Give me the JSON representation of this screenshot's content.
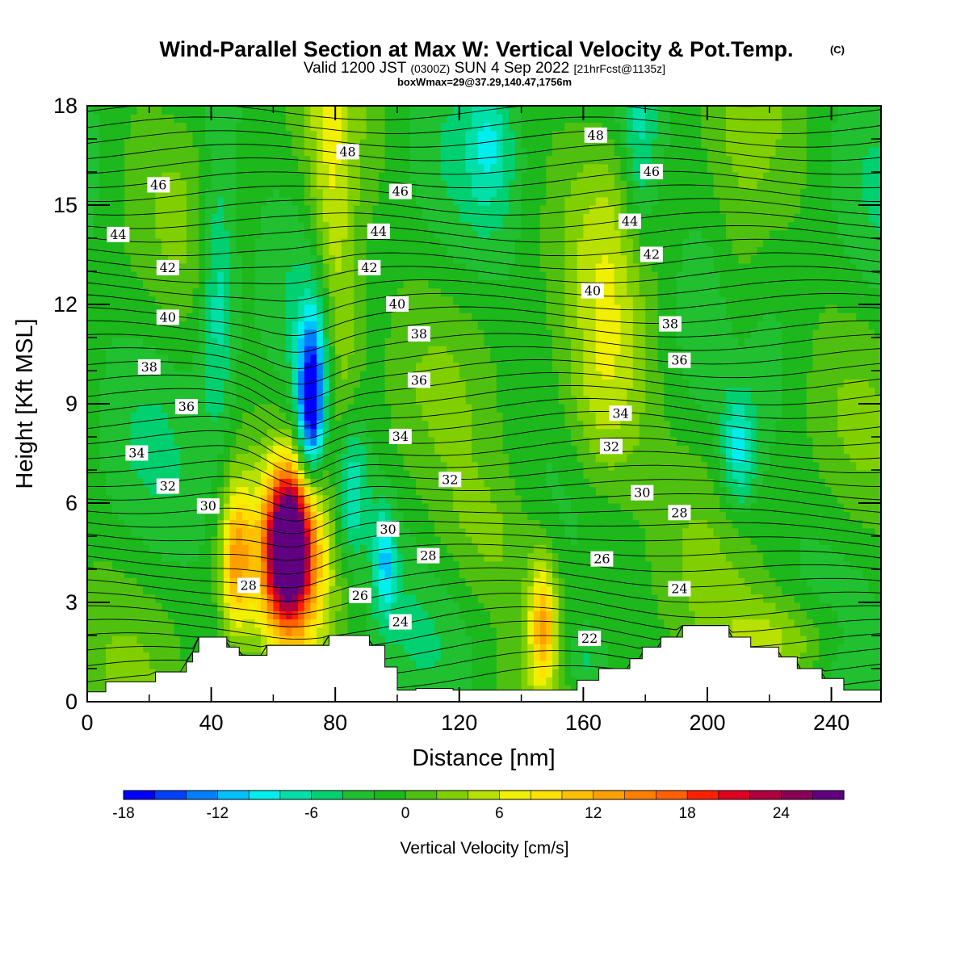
{
  "chart_data": {
    "type": "heatmap",
    "title": "Wind-Parallel Section at Max W: Vertical Velocity & Pot.Temp.",
    "title_mark": "(C)",
    "subtitle": {
      "valid": "Valid 1200 JST",
      "utc": "(0300Z)",
      "date": "SUN 4 Sep 2022",
      "forecast": "[21hrFcst@1135z]"
    },
    "box_info": "boxWmax=29@37.29,140.47,1756m",
    "xlabel": "Distance [nm]",
    "ylabel": "Height [Kft MSL]",
    "xlim": [
      0,
      256
    ],
    "ylim": [
      0,
      18
    ],
    "x_ticks": [
      0,
      40,
      80,
      120,
      160,
      200,
      240
    ],
    "y_ticks": [
      0,
      3,
      6,
      9,
      12,
      15,
      18
    ],
    "colorbar": {
      "title": "Vertical Velocity [cm/s]",
      "min": -18,
      "max": 28,
      "step": 2,
      "tick_values": [
        -18,
        -12,
        -6,
        0,
        6,
        12,
        18,
        24
      ],
      "tick_labels": [
        "-18",
        "-12",
        "-6",
        "0",
        "6",
        "12",
        "18",
        "24"
      ],
      "colors": [
        "#0000ff",
        "#0040ff",
        "#0080ff",
        "#00c0ff",
        "#00eeee",
        "#00e0a8",
        "#00d070",
        "#20c030",
        "#1cb81c",
        "#50c010",
        "#80d000",
        "#b8e000",
        "#f0f000",
        "#ffe000",
        "#ffc000",
        "#ffa000",
        "#ff8000",
        "#ff6000",
        "#ff2000",
        "#e00020",
        "#b00040",
        "#8a0058",
        "#600080"
      ]
    },
    "velocity_features": [
      {
        "name": "updraft-core",
        "x": 65,
        "z": 4.8,
        "value": 29,
        "sx": 5,
        "sz": 1.5
      },
      {
        "name": "updraft-flank",
        "x": 65,
        "z": 3.6,
        "value": 10,
        "sx": 9,
        "sz": 2.2
      },
      {
        "name": "updraft-west",
        "x": 48,
        "z": 4.3,
        "value": 12,
        "sx": 3.5,
        "sz": 1.6
      },
      {
        "name": "updraft-east",
        "x": 147,
        "z": 2.4,
        "value": 12,
        "sx": 3,
        "sz": 1.3
      },
      {
        "name": "upper-plume-1",
        "x": 78,
        "z": 14,
        "value": 6,
        "sx": 5,
        "sz": 4.5
      },
      {
        "name": "upper-plume-2",
        "x": 83,
        "z": 11,
        "value": 4,
        "sx": 5,
        "sz": 3
      },
      {
        "name": "plume-east-1",
        "x": 168,
        "z": 11,
        "value": 4,
        "sx": 8,
        "sz": 4
      },
      {
        "name": "plume-east-2",
        "x": 163,
        "z": 8.6,
        "value": 4,
        "sx": 11,
        "sz": 2
      },
      {
        "name": "lowlevel-east",
        "x": 225,
        "z": 1.8,
        "value": 6,
        "sx": 14,
        "sz": 1
      },
      {
        "name": "lowlevel-mid",
        "x": 128,
        "z": 5,
        "value": 3,
        "sx": 15,
        "sz": 1.5
      },
      {
        "name": "upper-east-3",
        "x": 210,
        "z": 12,
        "value": 3,
        "sx": 6,
        "sz": 3
      },
      {
        "name": "downdraft-core",
        "x": 72,
        "z": 8.8,
        "value": -15,
        "sx": 3,
        "sz": 1.6
      },
      {
        "name": "downdraft-slant",
        "x": 85,
        "z": 6.4,
        "value": -9,
        "sx": 4,
        "sz": 1.5
      },
      {
        "name": "downdraft-low",
        "x": 96,
        "z": 4.3,
        "value": -8,
        "sx": 2.5,
        "sz": 1.2
      },
      {
        "name": "downdraft-west-upper",
        "x": 42,
        "z": 12.5,
        "value": -7,
        "sx": 4,
        "sz": 3
      },
      {
        "name": "downdraft-mid",
        "x": 74,
        "z": 10.3,
        "value": -7,
        "sx": 4,
        "sz": 2
      },
      {
        "name": "downdraft-east",
        "x": 210,
        "z": 7.5,
        "value": -8,
        "sx": 4,
        "sz": 1.3
      },
      {
        "name": "downdraft-top",
        "x": 130,
        "z": 17,
        "value": -5,
        "sx": 5,
        "sz": 1.5
      },
      {
        "name": "downdraft-top-east",
        "x": 178,
        "z": 16.5,
        "value": -5,
        "sx": 4,
        "sz": 2
      },
      {
        "name": "downdraft-low-east",
        "x": 160,
        "z": 1.2,
        "value": -5,
        "sx": 5,
        "sz": 0.8
      }
    ],
    "theta_contours": {
      "levels": [
        22,
        24,
        26,
        28,
        30,
        32,
        34,
        36,
        38,
        40,
        42,
        44,
        46,
        48
      ],
      "labels": [
        {
          "text": "48",
          "x": 84,
          "z": 16.6
        },
        {
          "text": "48",
          "x": 164,
          "z": 17.1
        },
        {
          "text": "46",
          "x": 23,
          "z": 15.6
        },
        {
          "text": "46",
          "x": 101,
          "z": 15.4
        },
        {
          "text": "46",
          "x": 182,
          "z": 16.0
        },
        {
          "text": "44",
          "x": 10,
          "z": 14.1
        },
        {
          "text": "44",
          "x": 94,
          "z": 14.2
        },
        {
          "text": "44",
          "x": 175,
          "z": 14.5
        },
        {
          "text": "42",
          "x": 26,
          "z": 13.1
        },
        {
          "text": "42",
          "x": 91,
          "z": 13.1
        },
        {
          "text": "42",
          "x": 182,
          "z": 13.5
        },
        {
          "text": "40",
          "x": 26,
          "z": 11.6
        },
        {
          "text": "40",
          "x": 100,
          "z": 12.0
        },
        {
          "text": "40",
          "x": 163,
          "z": 12.4
        },
        {
          "text": "38",
          "x": 20,
          "z": 10.1
        },
        {
          "text": "38",
          "x": 107,
          "z": 11.1
        },
        {
          "text": "38",
          "x": 188,
          "z": 11.4
        },
        {
          "text": "36",
          "x": 32,
          "z": 8.9
        },
        {
          "text": "36",
          "x": 107,
          "z": 9.7
        },
        {
          "text": "36",
          "x": 191,
          "z": 10.3
        },
        {
          "text": "34",
          "x": 16,
          "z": 7.5
        },
        {
          "text": "34",
          "x": 101,
          "z": 8.0
        },
        {
          "text": "34",
          "x": 172,
          "z": 8.7
        },
        {
          "text": "32",
          "x": 26,
          "z": 6.5
        },
        {
          "text": "32",
          "x": 117,
          "z": 6.7
        },
        {
          "text": "32",
          "x": 169,
          "z": 7.7
        },
        {
          "text": "30",
          "x": 39,
          "z": 5.9
        },
        {
          "text": "30",
          "x": 97,
          "z": 5.2
        },
        {
          "text": "30",
          "x": 179,
          "z": 6.3
        },
        {
          "text": "28",
          "x": 52,
          "z": 3.5
        },
        {
          "text": "28",
          "x": 110,
          "z": 4.4
        },
        {
          "text": "28",
          "x": 191,
          "z": 5.7
        },
        {
          "text": "26",
          "x": 88,
          "z": 3.2
        },
        {
          "text": "26",
          "x": 166,
          "z": 4.3
        },
        {
          "text": "24",
          "x": 101,
          "z": 2.4
        },
        {
          "text": "24",
          "x": 191,
          "z": 3.4
        },
        {
          "text": "22",
          "x": 162,
          "z": 1.9
        }
      ]
    },
    "terrain": [
      [
        0,
        0.3
      ],
      [
        6,
        0.3
      ],
      [
        6,
        0.6
      ],
      [
        22,
        0.6
      ],
      [
        22,
        0.9
      ],
      [
        32,
        0.9
      ],
      [
        32,
        1.2
      ],
      [
        34,
        1.2
      ],
      [
        34,
        1.5
      ],
      [
        36,
        1.5
      ],
      [
        36,
        1.95
      ],
      [
        45,
        1.95
      ],
      [
        45,
        1.65
      ],
      [
        49,
        1.65
      ],
      [
        49,
        1.4
      ],
      [
        58,
        1.4
      ],
      [
        58,
        1.7
      ],
      [
        78,
        1.7
      ],
      [
        78,
        2.0
      ],
      [
        91,
        2.0
      ],
      [
        91,
        1.7
      ],
      [
        96,
        1.7
      ],
      [
        96,
        1.05
      ],
      [
        100,
        1.05
      ],
      [
        100,
        0.35
      ],
      [
        106,
        0.35
      ],
      [
        106,
        0.4
      ],
      [
        118,
        0.4
      ],
      [
        118,
        0.35
      ],
      [
        158,
        0.35
      ],
      [
        158,
        0.65
      ],
      [
        165,
        0.65
      ],
      [
        165,
        1.0
      ],
      [
        175,
        1.0
      ],
      [
        175,
        1.3
      ],
      [
        179,
        1.3
      ],
      [
        179,
        1.65
      ],
      [
        185,
        1.65
      ],
      [
        185,
        1.95
      ],
      [
        192,
        1.95
      ],
      [
        192,
        2.3
      ],
      [
        207,
        2.3
      ],
      [
        207,
        1.95
      ],
      [
        214,
        1.95
      ],
      [
        214,
        1.65
      ],
      [
        223,
        1.65
      ],
      [
        223,
        1.35
      ],
      [
        229,
        1.35
      ],
      [
        229,
        1.0
      ],
      [
        237,
        1.0
      ],
      [
        237,
        0.7
      ],
      [
        244,
        0.7
      ],
      [
        244,
        0.35
      ],
      [
        256,
        0.35
      ]
    ]
  }
}
